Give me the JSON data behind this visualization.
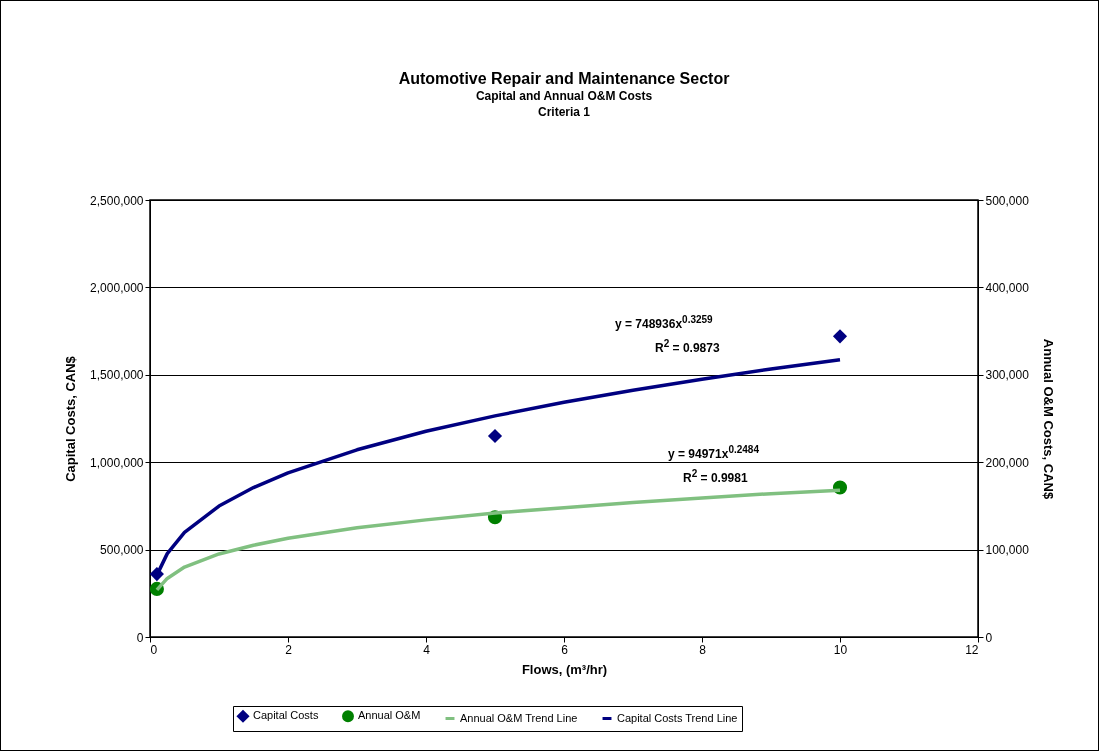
{
  "chart_data": {
    "type": "scatter",
    "title": "Automotive Repair and Maintenance Sector",
    "subtitle": "Capital and Annual O&M Costs\nCriteria 1",
    "xlabel": "Flows, (m³/hr)",
    "ylabel": "Capital Costs, CAN$",
    "y2label": "Annual O&M Costs, CAN$",
    "xlim": [
      0,
      12
    ],
    "xticks": [
      0,
      2,
      4,
      6,
      8,
      10,
      12
    ],
    "ylim": [
      0,
      2500000
    ],
    "yticks": [
      0,
      {
        "value": 500000,
        "label": "500,000"
      },
      {
        "value": 1000000,
        "label": "1,000,000"
      },
      {
        "value": 1500000,
        "label": "1,500,000"
      },
      {
        "value": 2000000,
        "label": "2,000,000"
      },
      {
        "value": 2500000,
        "label": "2,500,000"
      }
    ],
    "y2lim": [
      0,
      500000
    ],
    "y2ticks": [
      0,
      {
        "value": 100000,
        "label": "100,000"
      },
      {
        "value": 200000,
        "label": "200,000"
      },
      {
        "value": 300000,
        "label": "300,000"
      },
      {
        "value": 400000,
        "label": "400,000"
      },
      {
        "value": 500000,
        "label": "500,000"
      }
    ],
    "grid": "y",
    "legend": "bottom",
    "annotations": [
      "y = 748936x$^{0.3259}$",
      "R$^{2}$ = 0.9873",
      "y = 94971x$^{0.2484}$",
      "R$^{2}$ = 0.9981"
    ],
    "series": [
      {
        "name": "Capital Costs",
        "marker": "diamond",
        "color": "#000080",
        "x": [
          0.1,
          5,
          10
        ],
        "values": [
          360000,
          1150000,
          1720000
        ]
      },
      {
        "name": "Annual O&M",
        "marker": "circle",
        "color": "#008000",
        "axis": "y2",
        "x": [
          0.1,
          5,
          10
        ],
        "values": [
          55000,
          137000,
          171000
        ]
      },
      {
        "name": "Annual O&M Trend Line",
        "type": "line",
        "color": "#80c080",
        "axis": "y2",
        "x": [
          0.1,
          0.25,
          0.5,
          1,
          1.5,
          2,
          3,
          4,
          5,
          6,
          7,
          8,
          9,
          10
        ],
        "values": [
          54000,
          67000,
          80000,
          95000,
          105000,
          113000,
          125000,
          134000,
          142000,
          148000,
          154000,
          159000,
          164000,
          168000
        ]
      },
      {
        "name": "Capital Costs Trend Line",
        "type": "line",
        "color": "#000080",
        "x": [
          0.1,
          0.25,
          0.5,
          1,
          1.5,
          2,
          3,
          4,
          5,
          6,
          7,
          8,
          9,
          10
        ],
        "values": [
          354000,
          477000,
          598000,
          749000,
          855000,
          939000,
          1071000,
          1177000,
          1265000,
          1343000,
          1412000,
          1475000,
          1533000,
          1586000
        ]
      }
    ]
  }
}
